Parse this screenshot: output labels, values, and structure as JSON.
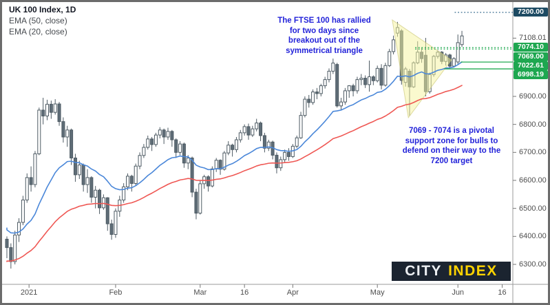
{
  "header": {
    "title": "UK 100 Index, 1D",
    "indicators": [
      "EMA (50, close)",
      "EMA (20, close)"
    ]
  },
  "annotations": {
    "breakout_note": "The FTSE 100 has rallied\nfor two days since\nbreakout out of the\nsymmetrical triangle",
    "support_note": "7069 - 7074 is a pivotal\nsupport zone for bulls to\ndefend on their way to the\n7200 target"
  },
  "logo": {
    "city": "CITY",
    "index": "INDEX"
  },
  "colors": {
    "candle_stroke": "#4d5a63",
    "candle_up_fill": "#ffffff",
    "candle_down_fill": "#5f6d77",
    "ema20": "#4a87d9",
    "ema50": "#ef5753",
    "note_text": "#2323d9",
    "axis_text": "#4d4d4d",
    "badge_green": "#1ea750",
    "badge_navy": "#1d4b63",
    "line_green": "#21aa52",
    "line_navy_dotted": "#33688c",
    "triangle_fill": "rgba(245,243,158,0.5)",
    "triangle_stroke": "rgba(203,198,118,0.65)",
    "frame": "#6b6b6b",
    "separator": "#9a9a9a",
    "logo_bg": "#1b2430",
    "logo_city": "#eceff2",
    "logo_index": "#ffd400"
  },
  "chart_data": {
    "type": "candlestick",
    "symbol": "UK 100 Index",
    "interval": "1D",
    "grid": false,
    "y_axis": {
      "ticks": [
        {
          "price": 6900,
          "label": "6900.00"
        },
        {
          "price": 6800,
          "label": "6800.00"
        },
        {
          "price": 6700,
          "label": "6700.00"
        },
        {
          "price": 6600,
          "label": "6600.00"
        },
        {
          "price": 6500,
          "label": "6500.00"
        },
        {
          "price": 6400,
          "label": "6400.00"
        },
        {
          "price": 6300,
          "label": "6300.00"
        }
      ],
      "range": [
        6270,
        7210
      ]
    },
    "x_axis": {
      "labels": [
        {
          "label": "2021",
          "i": 5.5
        },
        {
          "label": "Feb",
          "i": 27
        },
        {
          "label": "Mar",
          "i": 48
        },
        {
          "label": "16",
          "i": 59
        },
        {
          "label": "Apr",
          "i": 71
        },
        {
          "label": "May",
          "i": 92
        },
        {
          "label": "Jun",
          "i": 112
        },
        {
          "label": "16",
          "i": 123
        }
      ]
    },
    "levels": [
      {
        "price": 7200.0,
        "label": "7200.00",
        "line": "dotted",
        "line_color": "#33688c",
        "badge_bg": "#1d4b63",
        "from_i": 111.2
      },
      {
        "price": 7108.01,
        "label": "7108.01",
        "line": "none"
      },
      {
        "price": 7074.1,
        "label": "7074.10",
        "line": "dotted",
        "line_color": "#21aa52",
        "badge_bg": "#1ea750",
        "from_i": 101.4,
        "stack": 0
      },
      {
        "price": 7069.0,
        "label": "7069.00",
        "line": "dotted",
        "line_color": "#21aa52",
        "badge_bg": "#1ea750",
        "from_i": 101.4,
        "stack": 1
      },
      {
        "price": 7022.61,
        "label": "7022.61",
        "line": "solid",
        "line_color": "#21aa52",
        "badge_bg": "#1ea750",
        "from_i": 112.7,
        "stack": 2
      },
      {
        "price": 6998.19,
        "label": "6998.19",
        "line": "solid",
        "line_color": "#21aa52",
        "badge_bg": "#1ea750",
        "from_i": 108.6,
        "stack": 3
      }
    ],
    "pattern": {
      "type": "symmetrical-triangle",
      "points": [
        [
          95.7,
          7173
        ],
        [
          99.7,
          6824
        ],
        [
          110.4,
          7030
        ]
      ]
    },
    "emas": [
      {
        "period": 50,
        "start": 6310,
        "color": "#ef5753"
      },
      {
        "period": 20,
        "start": 6430,
        "color": "#4a87d9"
      }
    ],
    "candles": [
      [
        6390,
        6400,
        6322,
        6360
      ],
      [
        6360,
        6375,
        6285,
        6310
      ],
      [
        6310,
        6420,
        6300,
        6405
      ],
      [
        6405,
        6465,
        6380,
        6450
      ],
      [
        6450,
        6545,
        6440,
        6530
      ],
      [
        6530,
        6625,
        6520,
        6610
      ],
      [
        6610,
        6650,
        6560,
        6585
      ],
      [
        6585,
        6705,
        6575,
        6695
      ],
      [
        6695,
        6860,
        6690,
        6851
      ],
      [
        6851,
        6895,
        6800,
        6830
      ],
      [
        6830,
        6888,
        6815,
        6872
      ],
      [
        6872,
        6885,
        6820,
        6843
      ],
      [
        6843,
        6890,
        6835,
        6873
      ],
      [
        6873,
        6880,
        6795,
        6810
      ],
      [
        6810,
        6825,
        6735,
        6755
      ],
      [
        6755,
        6795,
        6720,
        6780
      ],
      [
        6780,
        6785,
        6655,
        6680
      ],
      [
        6680,
        6695,
        6595,
        6620
      ],
      [
        6620,
        6670,
        6605,
        6655
      ],
      [
        6655,
        6660,
        6560,
        6585
      ],
      [
        6585,
        6640,
        6555,
        6610
      ],
      [
        6610,
        6615,
        6520,
        6540
      ],
      [
        6540,
        6580,
        6500,
        6565
      ],
      [
        6565,
        6570,
        6480,
        6502
      ],
      [
        6502,
        6550,
        6495,
        6538
      ],
      [
        6538,
        6540,
        6420,
        6445
      ],
      [
        6445,
        6460,
        6388,
        6407
      ],
      [
        6407,
        6500,
        6395,
        6490
      ],
      [
        6490,
        6545,
        6470,
        6530
      ],
      [
        6530,
        6590,
        6520,
        6577
      ],
      [
        6577,
        6625,
        6565,
        6615
      ],
      [
        6615,
        6620,
        6560,
        6589
      ],
      [
        6589,
        6660,
        6580,
        6651
      ],
      [
        6651,
        6700,
        6640,
        6689
      ],
      [
        6689,
        6730,
        6680,
        6718
      ],
      [
        6718,
        6760,
        6710,
        6748
      ],
      [
        6748,
        6755,
        6705,
        6728
      ],
      [
        6728,
        6770,
        6720,
        6762
      ],
      [
        6762,
        6790,
        6750,
        6780
      ],
      [
        6780,
        6785,
        6730,
        6755
      ],
      [
        6755,
        6788,
        6745,
        6775
      ],
      [
        6775,
        6780,
        6720,
        6745
      ],
      [
        6745,
        6750,
        6680,
        6700
      ],
      [
        6700,
        6740,
        6690,
        6730
      ],
      [
        6730,
        6735,
        6645,
        6662
      ],
      [
        6662,
        6690,
        6640,
        6680
      ],
      [
        6680,
        6685,
        6540,
        6558
      ],
      [
        6558,
        6570,
        6461,
        6483
      ],
      [
        6483,
        6600,
        6478,
        6588
      ],
      [
        6588,
        6620,
        6570,
        6613
      ],
      [
        6613,
        6618,
        6560,
        6580
      ],
      [
        6580,
        6650,
        6575,
        6641
      ],
      [
        6641,
        6680,
        6630,
        6672
      ],
      [
        6672,
        6675,
        6620,
        6640
      ],
      [
        6640,
        6705,
        6635,
        6698
      ],
      [
        6698,
        6740,
        6690,
        6726
      ],
      [
        6726,
        6731,
        6685,
        6710
      ],
      [
        6710,
        6755,
        6700,
        6745
      ],
      [
        6745,
        6780,
        6735,
        6770
      ],
      [
        6770,
        6800,
        6760,
        6792
      ],
      [
        6792,
        6803,
        6745,
        6762
      ],
      [
        6762,
        6795,
        6755,
        6784
      ],
      [
        6784,
        6820,
        6775,
        6805
      ],
      [
        6805,
        6810,
        6740,
        6760
      ],
      [
        6760,
        6770,
        6700,
        6715
      ],
      [
        6715,
        6745,
        6705,
        6737
      ],
      [
        6737,
        6742,
        6675,
        6690
      ],
      [
        6690,
        6700,
        6625,
        6645
      ],
      [
        6645,
        6685,
        6634,
        6674
      ],
      [
        6674,
        6710,
        6665,
        6700
      ],
      [
        6700,
        6715,
        6670,
        6685
      ],
      [
        6685,
        6730,
        6680,
        6722
      ],
      [
        6722,
        6760,
        6715,
        6752
      ],
      [
        6752,
        6845,
        6748,
        6832
      ],
      [
        6832,
        6900,
        6825,
        6890
      ],
      [
        6890,
        6905,
        6860,
        6878
      ],
      [
        6878,
        6925,
        6870,
        6916
      ],
      [
        6916,
        6930,
        6890,
        6910
      ],
      [
        6910,
        6945,
        6900,
        6938
      ],
      [
        6938,
        6970,
        6928,
        6960
      ],
      [
        6960,
        7000,
        6950,
        6990
      ],
      [
        6990,
        7035,
        6980,
        7019
      ],
      [
        7014,
        7020,
        6860,
        6866
      ],
      [
        6866,
        6895,
        6850,
        6880
      ],
      [
        6880,
        6930,
        6870,
        6920
      ],
      [
        6920,
        6940,
        6895,
        6938
      ],
      [
        6938,
        6945,
        6900,
        6920
      ],
      [
        6920,
        6970,
        6910,
        6960
      ],
      [
        6960,
        6980,
        6940,
        6965
      ],
      [
        6965,
        6975,
        6930,
        6942
      ],
      [
        6942,
        7028,
        6917,
        6970
      ],
      [
        6970,
        6975,
        6940,
        6956
      ],
      [
        6956,
        7010,
        6950,
        7000
      ],
      [
        7000,
        7015,
        6925,
        6940
      ],
      [
        6940,
        7020,
        6935,
        7010
      ],
      [
        7010,
        7070,
        7005,
        7060
      ],
      [
        7060,
        7117,
        7050,
        7102
      ],
      [
        7126,
        7166,
        7113,
        7146
      ],
      [
        7134,
        7140,
        6942,
        6957
      ],
      [
        6950,
        7005,
        6935,
        6998
      ],
      [
        6990,
        6998,
        6831,
        6934
      ],
      [
        6934,
        7025,
        6930,
        7020
      ],
      [
        7020,
        7097,
        7015,
        7058
      ],
      [
        7058,
        7075,
        7020,
        7035
      ],
      [
        7047,
        7109,
        6900,
        6917
      ],
      [
        6917,
        6985,
        6910,
        6978
      ],
      [
        6978,
        7048,
        6970,
        7043
      ],
      [
        7043,
        7065,
        7035,
        7058
      ],
      [
        7058,
        7062,
        7015,
        7025
      ],
      [
        7025,
        7055,
        7010,
        7048
      ],
      [
        7048,
        7052,
        7000,
        7008
      ],
      [
        7008,
        7040,
        7003,
        7035
      ],
      [
        7023,
        7121,
        7015,
        7092
      ],
      [
        7085,
        7134,
        7077,
        7116
      ]
    ]
  }
}
